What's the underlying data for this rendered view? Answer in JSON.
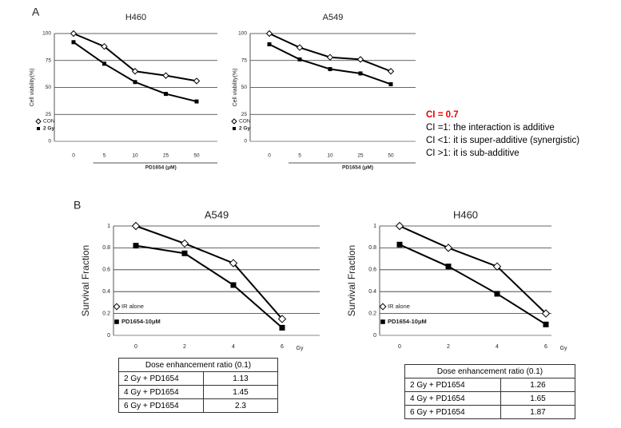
{
  "panel_labels": [
    "A",
    "B"
  ],
  "chart_data": [
    {
      "type": "line",
      "title": "H460",
      "y_label": "Cell viability(%)",
      "x_label": "PD1654 (μM)",
      "categories": [
        "0",
        "5",
        "10",
        "25",
        "50"
      ],
      "ylim": [
        0,
        100
      ],
      "yticks": [
        0,
        25,
        50,
        75,
        100
      ],
      "grid": true,
      "legend": "lower left",
      "series": [
        {
          "name": "CON",
          "color": "#000000",
          "marker": "open-diamond",
          "values": [
            100,
            88,
            65,
            61,
            56
          ]
        },
        {
          "name": "2 Gy",
          "color": "#000000",
          "marker": "square",
          "values": [
            92,
            72,
            55,
            44,
            37
          ]
        }
      ]
    },
    {
      "type": "line",
      "title": "A549",
      "y_label": "Cell viability(%)",
      "x_label": "PD1654 (μM)",
      "categories": [
        "0",
        "5",
        "10",
        "25",
        "50"
      ],
      "ylim": [
        0,
        100
      ],
      "yticks": [
        0,
        25,
        50,
        75,
        100
      ],
      "grid": true,
      "legend": "lower left",
      "series": [
        {
          "name": "CON",
          "color": "#000000",
          "marker": "open-diamond",
          "values": [
            100,
            87,
            78,
            76,
            65
          ]
        },
        {
          "name": "2 Gy",
          "color": "#000000",
          "marker": "square",
          "values": [
            90,
            76,
            67,
            63,
            53
          ]
        }
      ]
    },
    {
      "type": "line",
      "title": "A549",
      "y_label": "Survival Fraction",
      "x_label": "Gy",
      "categories": [
        "0",
        "2",
        "4",
        "6"
      ],
      "ylim": [
        0,
        1
      ],
      "yticks": [
        0,
        0.2,
        0.4,
        0.6,
        0.8,
        1
      ],
      "grid": true,
      "legend": "lower left",
      "series": [
        {
          "name": "IR alone",
          "color": "#000000",
          "marker": "open-diamond",
          "values": [
            1,
            0.84,
            0.66,
            0.15
          ]
        },
        {
          "name": "PD1654-10μM",
          "color": "#000000",
          "marker": "square",
          "values": [
            0.82,
            0.75,
            0.46,
            0.07
          ]
        }
      ]
    },
    {
      "type": "line",
      "title": "H460",
      "y_label": "Survival Fraction",
      "x_label": "Gy",
      "categories": [
        "0",
        "2",
        "4",
        "6"
      ],
      "ylim": [
        0,
        1
      ],
      "yticks": [
        0,
        0.2,
        0.4,
        0.6,
        0.8,
        1
      ],
      "grid": true,
      "legend": "lower left",
      "series": [
        {
          "name": "IR alone",
          "color": "#000000",
          "marker": "open-diamond",
          "values": [
            1,
            0.8,
            0.63,
            0.2
          ]
        },
        {
          "name": "PD1654-10μM",
          "color": "#000000",
          "marker": "square",
          "values": [
            0.83,
            0.63,
            0.38,
            0.1
          ]
        }
      ]
    }
  ],
  "notes": {
    "title": "CI = 0.7",
    "lines": [
      "CI =1: the interaction is additive",
      "CI <1: it is super-additive (synergistic)",
      "CI >1: it is sub-additive"
    ]
  },
  "tables": [
    {
      "title": "Dose enhancement ratio (0.1)",
      "rows": [
        [
          "2 Gy + PD1654",
          "1.13"
        ],
        [
          "4 Gy + PD1654",
          "1.45"
        ],
        [
          "6 Gy + PD1654",
          "2.3"
        ]
      ]
    },
    {
      "title": "Dose enhancement ratio (0.1)",
      "rows": [
        [
          "2 Gy + PD1654",
          "1.26"
        ],
        [
          "4 Gy + PD1654",
          "1.65"
        ],
        [
          "6 Gy + PD1654",
          "1.87"
        ]
      ]
    }
  ]
}
